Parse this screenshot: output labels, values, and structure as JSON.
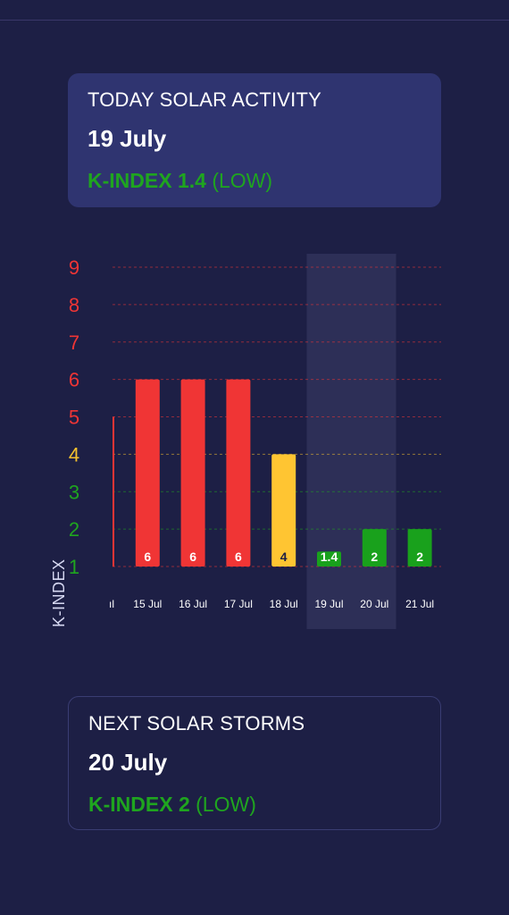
{
  "today_card": {
    "heading": "TODAY SOLAR ACTIVITY",
    "date": "19 July",
    "kindex_label": "K-INDEX 1.4",
    "level": "(LOW)"
  },
  "next_card": {
    "heading": "NEXT SOLAR STORMS",
    "date": "20 July",
    "kindex_label": "K-INDEX 2",
    "level": "(LOW)"
  },
  "chart_data": {
    "type": "bar",
    "ylabel": "K-INDEX",
    "ylim": [
      1,
      9
    ],
    "yticks": [
      1,
      2,
      3,
      4,
      5,
      6,
      7,
      8,
      9
    ],
    "tick_colors": {
      "1": "#1fa51f",
      "2": "#1fa51f",
      "3": "#1fa51f",
      "4": "#f4c02e",
      "5": "#f03535",
      "6": "#f03535",
      "7": "#f03535",
      "8": "#f03535",
      "9": "#f03535"
    },
    "categories": [
      "ıl",
      "15 Jul",
      "16 Jul",
      "17 Jul",
      "18 Jul",
      "19 Jul",
      "20 Jul",
      "21 Jul"
    ],
    "values": [
      5,
      6,
      6,
      6,
      4,
      1.4,
      2,
      2
    ],
    "value_labels": [
      "",
      "6",
      "6",
      "6",
      "4",
      "1.4",
      "2",
      "2"
    ],
    "bar_colors": [
      "#f03535",
      "#f03535",
      "#f03535",
      "#f03535",
      "#ffc532",
      "#19a11c",
      "#19a11c",
      "#19a11c"
    ],
    "label_colors": [
      "#ffffff",
      "#ffffff",
      "#ffffff",
      "#ffffff",
      "#1d1f45",
      "#ffffff",
      "#ffffff",
      "#ffffff"
    ],
    "highlight_category": "19 Jul",
    "grid": true
  }
}
